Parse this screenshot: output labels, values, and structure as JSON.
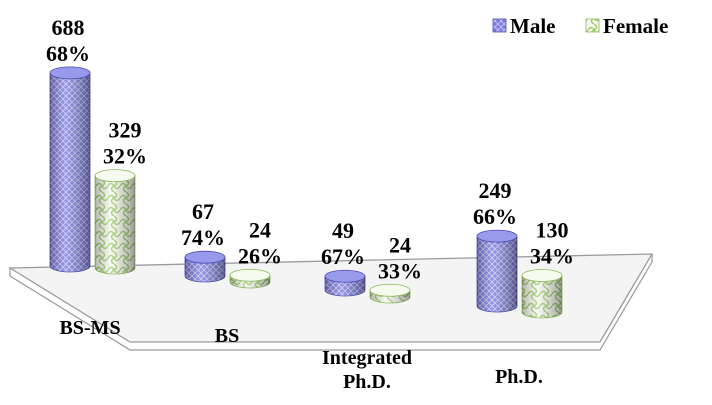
{
  "chart_data": {
    "type": "bar",
    "style": "3d-cylinder",
    "categories": [
      "BS-MS",
      "BS",
      "Integrated\nPh.D.",
      "Ph.D."
    ],
    "series": [
      {
        "name": "Male",
        "values": [
          688,
          67,
          49,
          249
        ],
        "percents": [
          "68%",
          "74%",
          "67%",
          "66%"
        ]
      },
      {
        "name": "Female",
        "values": [
          329,
          24,
          24,
          130
        ],
        "percents": [
          "32%",
          "26%",
          "33%",
          "34%"
        ]
      }
    ],
    "legend": {
      "position": "top-right"
    },
    "grid": false,
    "title": "",
    "xlabel": "",
    "ylabel": ""
  },
  "colors": {
    "male": "#7b7be0",
    "male_dark": "#4b4bb4",
    "female": "#f1f6ea",
    "female_pattern": "#9ccc66",
    "floor": "#f4f4f4"
  }
}
